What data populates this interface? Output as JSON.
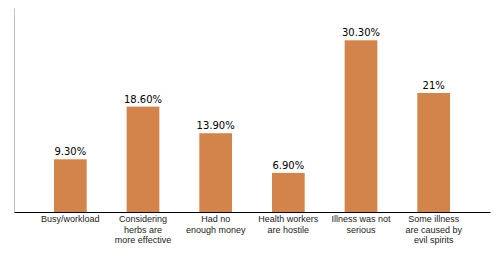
{
  "chart_data": {
    "type": "bar",
    "categories": [
      "Busy/workload",
      "Considering\nherbs are\nmore effective",
      "Had no\nenough money",
      "Health workers\nare hostile",
      "Illness was not\nserious",
      "Some illness\nare caused by\nevil spirits"
    ],
    "values": [
      9.3,
      18.6,
      13.9,
      6.9,
      30.3,
      21.0
    ],
    "value_labels": [
      "9.30%",
      "18.60%",
      "13.90%",
      "6.90%",
      "30.30%",
      "21%"
    ],
    "color": "#D2844A",
    "ylim": [
      0,
      36
    ],
    "data_labels": true,
    "tick_labels": "x"
  }
}
